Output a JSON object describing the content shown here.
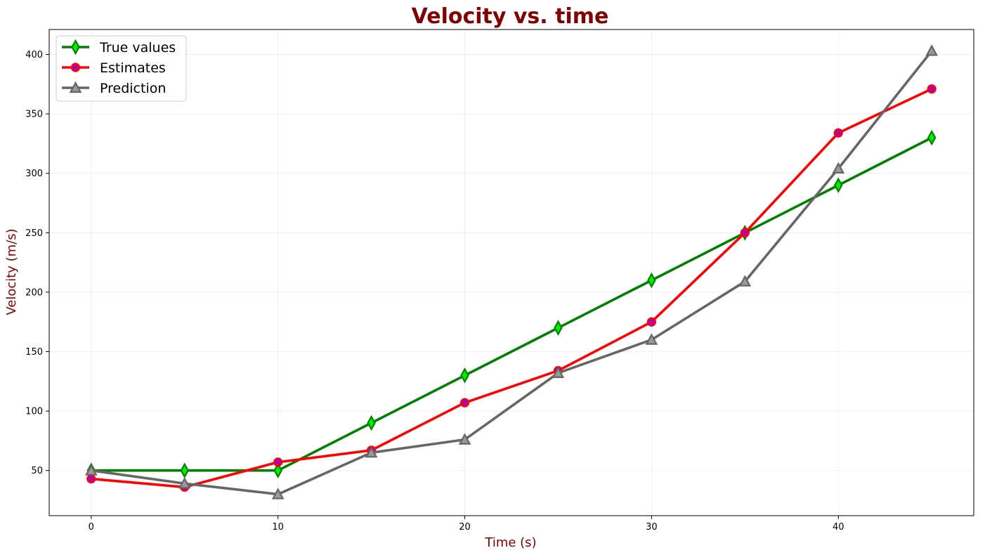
{
  "colors": {
    "title": "#800000",
    "axis_label": "#800000",
    "grid": "#eeeeee",
    "axes": "#000000"
  },
  "chart_data": {
    "type": "line",
    "title": "Velocity vs. time",
    "xlabel": "Time (s)",
    "ylabel": "Velocity (m/s)",
    "xlim": [
      -2.25,
      47.25
    ],
    "ylim": [
      12,
      421
    ],
    "x_ticks": [
      0,
      10,
      20,
      30,
      40
    ],
    "y_ticks": [
      50,
      100,
      150,
      200,
      250,
      300,
      350,
      400
    ],
    "grid": true,
    "legend_position": "top-left",
    "x": [
      0,
      5,
      10,
      15,
      20,
      25,
      30,
      35,
      40,
      45
    ],
    "series": [
      {
        "name": "True values",
        "values": [
          50,
          50,
          50,
          90,
          130,
          170,
          210,
          250,
          290,
          330
        ],
        "line_color": "#008000",
        "marker": "diamond",
        "marker_fill": "#00ee00",
        "marker_edge": "#008000"
      },
      {
        "name": "Estimates",
        "values": [
          43,
          36,
          57,
          67,
          107,
          134,
          175,
          250,
          334,
          371
        ],
        "line_color": "#ff0000",
        "marker": "circle",
        "marker_fill": "#b000b0",
        "marker_edge": "#ff0000"
      },
      {
        "name": "Prediction",
        "values": [
          50,
          39,
          30,
          65,
          76,
          132,
          160,
          209,
          304,
          403
        ],
        "line_color": "#666666",
        "marker": "triangle",
        "marker_fill": "#999999",
        "marker_edge": "#666666"
      }
    ]
  }
}
